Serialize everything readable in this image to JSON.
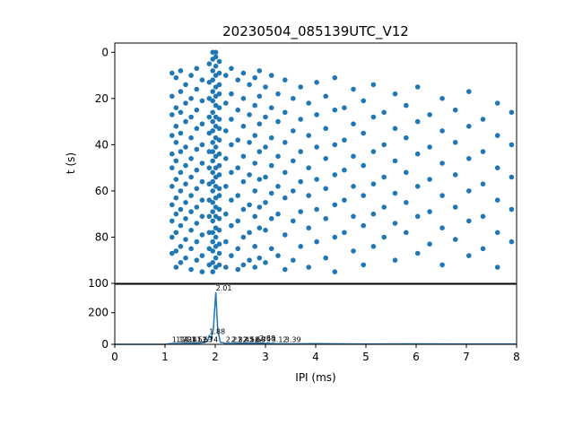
{
  "chart_data": [
    {
      "type": "scatter",
      "title": "20230504_085139UTC_V12",
      "xlabel": "",
      "ylabel": "t (s)",
      "xlim": [
        0,
        8
      ],
      "ylim": [
        100,
        -4
      ],
      "y_inverted": true,
      "yticks": [
        "0",
        "20",
        "40",
        "60",
        "80",
        "100"
      ],
      "grid": false,
      "color": "#1f77b4",
      "columns": [
        {
          "x": 1.14,
          "y": [
            9,
            19,
            27,
            36,
            44,
            50,
            58,
            66,
            73,
            80,
            87
          ]
        },
        {
          "x": 1.22,
          "y": [
            11,
            24,
            32,
            39,
            47,
            55,
            63,
            70,
            78,
            86,
            93
          ]
        },
        {
          "x": 1.31,
          "y": [
            8,
            17,
            26,
            35,
            43,
            52,
            60,
            68,
            75,
            84,
            91
          ]
        },
        {
          "x": 1.41,
          "y": [
            14,
            22,
            30,
            41,
            49,
            57,
            65,
            72,
            81,
            89
          ]
        },
        {
          "x": 1.52,
          "y": [
            10,
            20,
            28,
            37,
            46,
            54,
            62,
            69,
            77,
            85,
            94
          ]
        },
        {
          "x": 1.63,
          "y": [
            7,
            16,
            25,
            33,
            42,
            51,
            59,
            67,
            74,
            82,
            90
          ]
        },
        {
          "x": 1.74,
          "y": [
            12,
            21,
            31,
            40,
            48,
            56,
            64,
            71,
            79,
            88,
            95
          ]
        },
        {
          "x": 1.88,
          "y": [
            5,
            13,
            20,
            28,
            35,
            43,
            50,
            57,
            64,
            71,
            78,
            85,
            92
          ]
        },
        {
          "x": 1.95,
          "y": [
            0,
            3,
            8,
            12,
            17,
            21,
            26,
            30,
            34,
            39,
            43,
            47,
            52,
            56,
            60,
            65,
            69,
            73,
            78,
            82,
            86,
            91,
            95
          ]
        },
        {
          "x": 2.01,
          "y": [
            0,
            2,
            6,
            10,
            15,
            19,
            23,
            28,
            32,
            37,
            41,
            45,
            50,
            54,
            58,
            63,
            67,
            71,
            76,
            80,
            84,
            89,
            93
          ]
        },
        {
          "x": 2.08,
          "y": [
            4,
            9,
            14,
            18,
            24,
            29,
            33,
            38,
            44,
            49,
            53,
            59,
            62,
            68,
            72,
            77,
            83,
            87,
            92
          ]
        },
        {
          "x": 2.21,
          "y": [
            10,
            22,
            34,
            46,
            58,
            70,
            82,
            93
          ]
        },
        {
          "x": 2.32,
          "y": [
            7,
            18,
            29,
            40,
            52,
            64,
            75,
            88
          ]
        },
        {
          "x": 2.45,
          "y": [
            12,
            25,
            38,
            50,
            62,
            73,
            85,
            94
          ]
        },
        {
          "x": 2.56,
          "y": [
            9,
            20,
            32,
            45,
            56,
            68,
            80,
            92
          ]
        },
        {
          "x": 2.68,
          "y": [
            14,
            27,
            39,
            53,
            66,
            78,
            90
          ]
        },
        {
          "x": 2.79,
          "y": [
            11,
            23,
            36,
            48,
            60,
            71,
            84,
            93
          ]
        },
        {
          "x": 2.88,
          "y": [
            8,
            19,
            31,
            43,
            55,
            67,
            76,
            89
          ]
        },
        {
          "x": 3.0,
          "y": [
            15,
            28,
            41,
            54,
            65,
            77,
            91
          ]
        },
        {
          "x": 3.12,
          "y": [
            10,
            24,
            37,
            49,
            61,
            72,
            85
          ]
        },
        {
          "x": 3.25,
          "y": [
            18,
            30,
            45,
            58,
            70,
            88
          ]
        },
        {
          "x": 3.39,
          "y": [
            12,
            26,
            39,
            52,
            63,
            79,
            94
          ]
        },
        {
          "x": 3.55,
          "y": [
            20,
            34,
            47,
            60,
            73,
            90
          ]
        },
        {
          "x": 3.7,
          "y": [
            15,
            29,
            43,
            56,
            69,
            84
          ]
        },
        {
          "x": 3.86,
          "y": [
            22,
            36,
            50,
            62,
            76,
            93
          ]
        },
        {
          "x": 4.02,
          "y": [
            13,
            27,
            41,
            55,
            68,
            82
          ]
        },
        {
          "x": 4.2,
          "y": [
            19,
            33,
            46,
            59,
            72,
            89
          ]
        },
        {
          "x": 4.38,
          "y": [
            11,
            25,
            40,
            53,
            66,
            80,
            95
          ]
        },
        {
          "x": 4.57,
          "y": [
            24,
            38,
            51,
            64,
            78
          ]
        },
        {
          "x": 4.75,
          "y": [
            16,
            31,
            45,
            58,
            71,
            86
          ]
        },
        {
          "x": 4.95,
          "y": [
            21,
            35,
            49,
            62,
            75,
            92
          ]
        },
        {
          "x": 5.15,
          "y": [
            14,
            28,
            43,
            57,
            70,
            84
          ]
        },
        {
          "x": 5.36,
          "y": [
            26,
            40,
            54,
            67,
            80
          ]
        },
        {
          "x": 5.58,
          "y": [
            18,
            33,
            47,
            61,
            74,
            90
          ]
        },
        {
          "x": 5.8,
          "y": [
            23,
            37,
            52,
            65,
            78
          ]
        },
        {
          "x": 6.03,
          "y": [
            15,
            30,
            44,
            58,
            71,
            87
          ]
        },
        {
          "x": 6.27,
          "y": [
            27,
            41,
            55,
            69,
            83
          ]
        },
        {
          "x": 6.52,
          "y": [
            20,
            34,
            48,
            62,
            76,
            92
          ]
        },
        {
          "x": 6.78,
          "y": [
            25,
            39,
            53,
            67,
            81
          ]
        },
        {
          "x": 7.05,
          "y": [
            17,
            32,
            46,
            60,
            73,
            88
          ]
        },
        {
          "x": 7.33,
          "y": [
            29,
            43,
            57,
            71,
            85
          ]
        },
        {
          "x": 7.62,
          "y": [
            22,
            36,
            50,
            64,
            78,
            93
          ]
        },
        {
          "x": 7.9,
          "y": [
            26,
            40,
            54,
            68,
            82
          ]
        }
      ]
    },
    {
      "type": "line",
      "xlabel": "IPI (ms)",
      "ylabel": "",
      "xlim": [
        0,
        8
      ],
      "ylim": [
        0,
        380
      ],
      "xticks": [
        "0",
        "1",
        "2",
        "3",
        "4",
        "5",
        "6",
        "7",
        "8"
      ],
      "yticks": [
        "0",
        "200"
      ],
      "color": "#1f77b4",
      "x": [
        0,
        1.0,
        1.1,
        1.2,
        1.3,
        1.4,
        1.5,
        1.6,
        1.7,
        1.8,
        1.85,
        1.88,
        1.92,
        1.96,
        2.01,
        2.05,
        2.1,
        2.2,
        2.3,
        2.5,
        2.7,
        2.9,
        3.2,
        3.6,
        4.0,
        5.0,
        6.0,
        7.0,
        8.0
      ],
      "y": [
        0,
        0,
        4,
        5,
        5,
        6,
        6,
        7,
        8,
        12,
        25,
        55,
        40,
        90,
        330,
        90,
        14,
        6,
        5,
        7,
        6,
        8,
        4,
        3,
        4,
        2,
        3,
        2,
        2
      ],
      "peak_labels": [
        {
          "x": 1.14,
          "y": 4,
          "text": "1.14"
        },
        {
          "x": 1.22,
          "y": 4,
          "text": "1.22"
        },
        {
          "x": 1.31,
          "y": 4,
          "text": "1.31"
        },
        {
          "x": 1.41,
          "y": 4,
          "text": "1.41"
        },
        {
          "x": 1.52,
          "y": 4,
          "text": "1.52"
        },
        {
          "x": 1.63,
          "y": 4,
          "text": "1.63"
        },
        {
          "x": 1.74,
          "y": 4,
          "text": "1.74"
        },
        {
          "x": 1.88,
          "y": 55,
          "text": "1.88"
        },
        {
          "x": 2.01,
          "y": 330,
          "text": "2.01"
        },
        {
          "x": 2.21,
          "y": 2,
          "text": "2.21"
        },
        {
          "x": 2.32,
          "y": 2,
          "text": "2.32"
        },
        {
          "x": 2.45,
          "y": 2,
          "text": "2.45"
        },
        {
          "x": 2.56,
          "y": 2,
          "text": "2.56"
        },
        {
          "x": 2.68,
          "y": 2,
          "text": "2.68"
        },
        {
          "x": 2.79,
          "y": 2,
          "text": "2.79"
        },
        {
          "x": 2.88,
          "y": 12,
          "text": "2.88"
        },
        {
          "x": 3.12,
          "y": 2,
          "text": "3.12"
        },
        {
          "x": 3.39,
          "y": 2,
          "text": "3.39"
        }
      ]
    }
  ]
}
